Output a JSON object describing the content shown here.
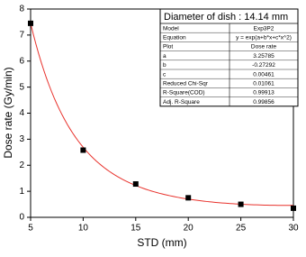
{
  "chart_data": {
    "type": "scatter",
    "x": [
      5,
      10,
      15,
      20,
      25,
      30
    ],
    "values": [
      7.45,
      2.58,
      1.28,
      0.75,
      0.5,
      0.35
    ],
    "color": "#000000",
    "fit_color": "#e8322c",
    "x_label": "STD (mm)",
    "y_label": "Dose rate (Gy/min)",
    "xlim": [
      5,
      30
    ],
    "ylim": [
      0,
      8
    ],
    "xticks": [
      5,
      10,
      15,
      20,
      25,
      30
    ],
    "yticks": [
      0,
      1,
      2,
      3,
      4,
      5,
      6,
      7,
      8
    ]
  },
  "table": {
    "title": "Diameter of dish : 14.14 mm",
    "rows": [
      [
        "Model",
        "Exp3P2"
      ],
      [
        "Equation",
        "y = exp(a+b*x+c*x^2)"
      ],
      [
        "Plot",
        "Dose rate"
      ],
      [
        "a",
        3.25785
      ],
      [
        "b",
        -0.27292
      ],
      [
        "c",
        0.00461
      ],
      [
        "Reduced Chi-Sqr",
        0.01061
      ],
      [
        "R-Square(COD)",
        0.99913
      ],
      [
        "Adj. R-Square",
        0.99856
      ]
    ]
  }
}
